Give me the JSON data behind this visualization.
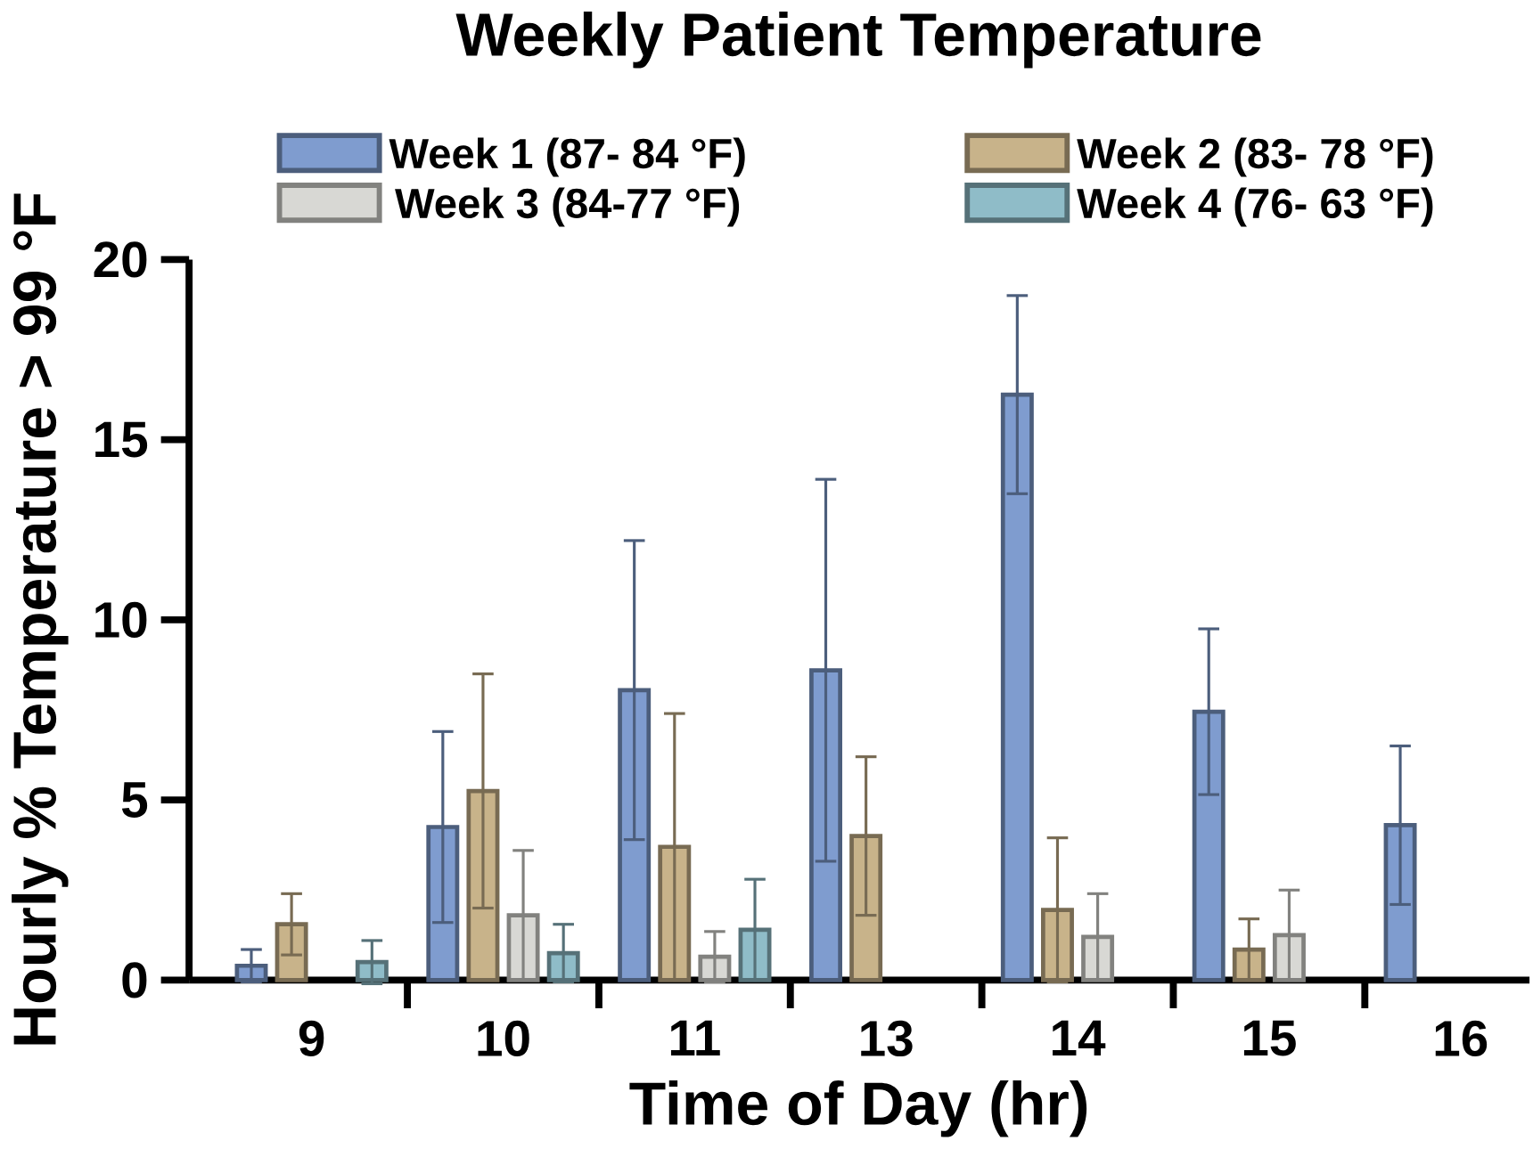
{
  "chart_data": {
    "type": "bar",
    "title": "Weekly Patient Temperature",
    "xlabel": "Time of Day (hr)",
    "ylabel": "Hourly % Temperature > 99 °F",
    "categories": [
      "9",
      "10",
      "11",
      "13",
      "14",
      "15",
      "16"
    ],
    "series": [
      {
        "name": "Week 1 (87- 84 °F)",
        "color": "#7f9ccf",
        "values": [
          0.4,
          4.25,
          8.05,
          8.6,
          16.25,
          7.45,
          4.3
        ],
        "errors": [
          0.45,
          2.65,
          4.15,
          5.3,
          2.75,
          2.3,
          2.2
        ]
      },
      {
        "name": "Week 2 (83- 78 °F)",
        "color": "#c8b38a",
        "values": [
          1.55,
          5.25,
          3.7,
          4.0,
          1.95,
          0.85,
          null
        ],
        "errors": [
          0.85,
          3.25,
          3.7,
          2.2,
          2.0,
          0.85,
          null
        ]
      },
      {
        "name": "Week 3 (84-77 °F)",
        "color": "#d8d8d4",
        "values": [
          null,
          1.8,
          0.65,
          null,
          1.2,
          1.25,
          null
        ],
        "errors": [
          null,
          1.8,
          0.7,
          null,
          1.2,
          1.25,
          null
        ]
      },
      {
        "name": "Week 4 (76- 63 °F)",
        "color": "#8fbcc8",
        "values": [
          0.5,
          0.75,
          1.4,
          null,
          null,
          null,
          null
        ],
        "errors": [
          0.6,
          0.8,
          1.4,
          null,
          null,
          null,
          null
        ]
      }
    ],
    "ylim": [
      0,
      20
    ],
    "yticks": [
      0,
      5,
      10,
      15,
      20
    ],
    "grid": false,
    "legend": "top"
  }
}
